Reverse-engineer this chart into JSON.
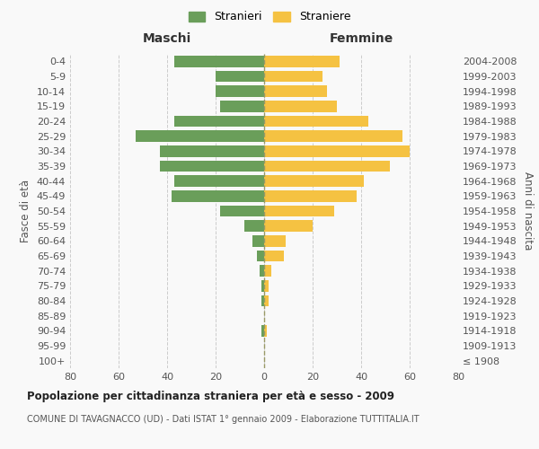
{
  "age_groups": [
    "100+",
    "95-99",
    "90-94",
    "85-89",
    "80-84",
    "75-79",
    "70-74",
    "65-69",
    "60-64",
    "55-59",
    "50-54",
    "45-49",
    "40-44",
    "35-39",
    "30-34",
    "25-29",
    "20-24",
    "15-19",
    "10-14",
    "5-9",
    "0-4"
  ],
  "birth_years": [
    "≤ 1908",
    "1909-1913",
    "1914-1918",
    "1919-1923",
    "1924-1928",
    "1929-1933",
    "1934-1938",
    "1939-1943",
    "1944-1948",
    "1949-1953",
    "1954-1958",
    "1959-1963",
    "1964-1968",
    "1969-1973",
    "1974-1978",
    "1979-1983",
    "1984-1988",
    "1989-1993",
    "1994-1998",
    "1999-2003",
    "2004-2008"
  ],
  "males": [
    0,
    0,
    1,
    0,
    1,
    1,
    2,
    3,
    5,
    8,
    18,
    38,
    37,
    43,
    43,
    53,
    37,
    18,
    20,
    20,
    37
  ],
  "females": [
    0,
    0,
    1,
    0,
    2,
    2,
    3,
    8,
    9,
    20,
    29,
    38,
    41,
    52,
    60,
    57,
    43,
    30,
    26,
    24,
    31
  ],
  "male_color": "#6a9e5a",
  "female_color": "#f5c242",
  "background_color": "#f9f9f9",
  "grid_color": "#cccccc",
  "title": "Popolazione per cittadinanza straniera per età e sesso - 2009",
  "subtitle": "COMUNE DI TAVAGNACCO (UD) - Dati ISTAT 1° gennaio 2009 - Elaborazione TUTTITALIA.IT",
  "xlabel_left": "Maschi",
  "xlabel_right": "Femmine",
  "ylabel_left": "Fasce di età",
  "ylabel_right": "Anni di nascita",
  "legend_males": "Stranieri",
  "legend_females": "Straniere",
  "xlim": 80
}
